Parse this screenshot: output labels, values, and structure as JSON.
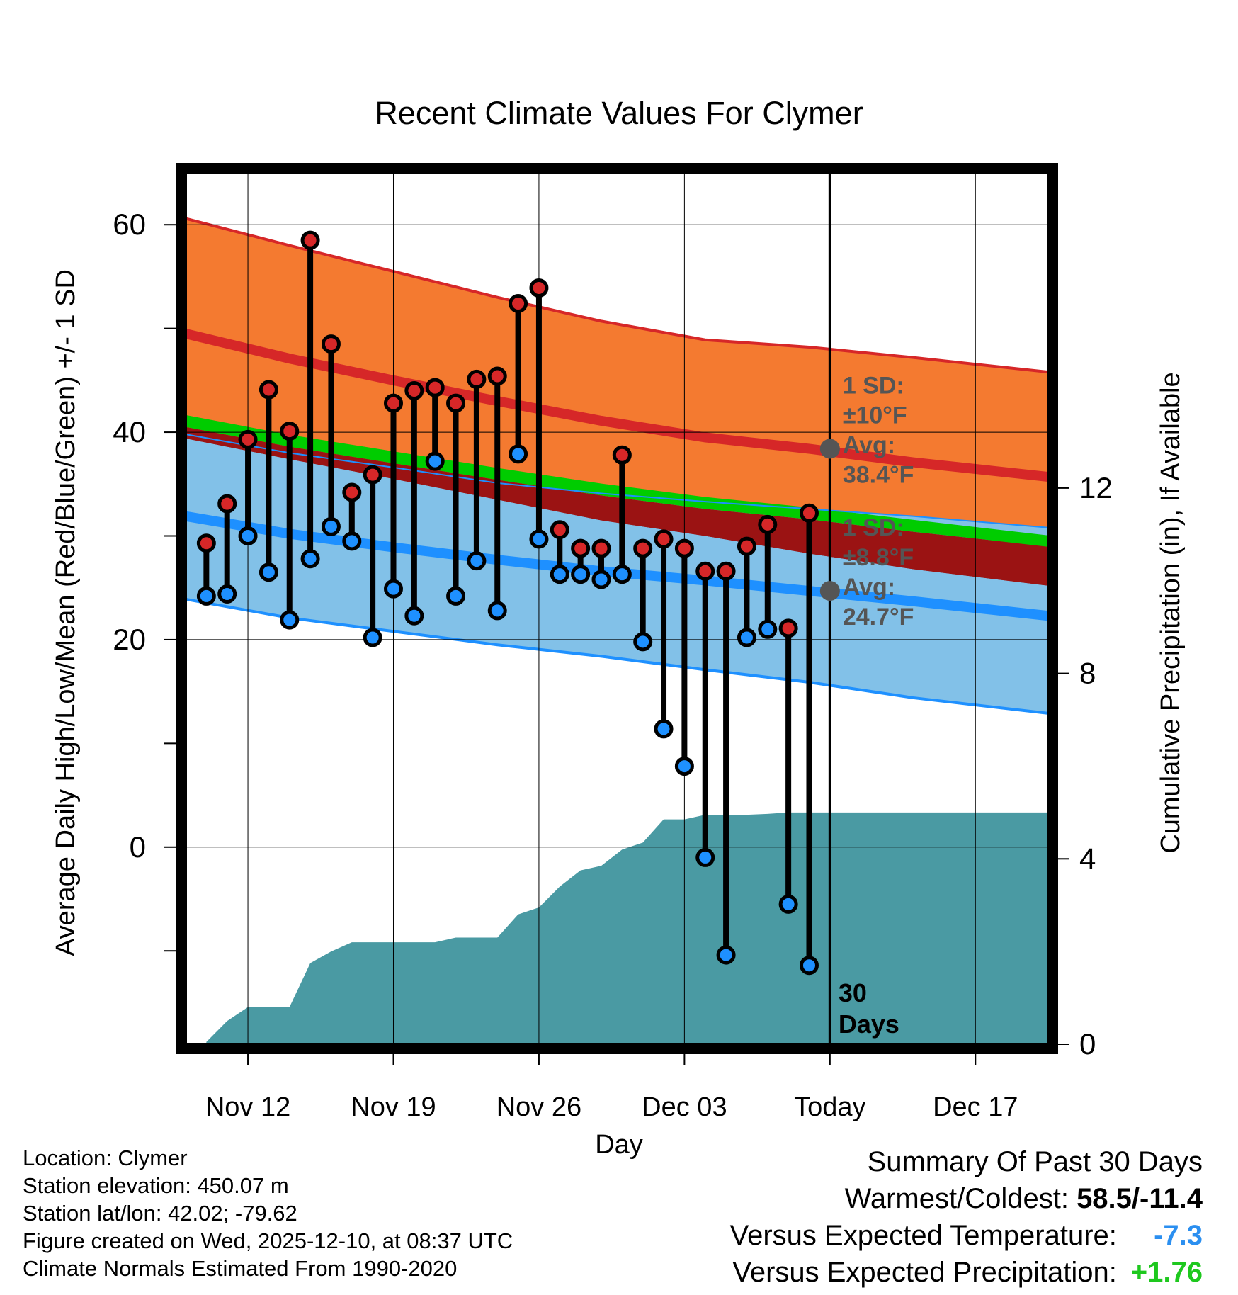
{
  "chart_data": {
    "type": "line",
    "title": "Recent Climate Values For Clymer",
    "xlabel": "Day",
    "ylabel": "Average Daily High/Low/Mean (Red/Blue/Green) +/- 1 SD",
    "y2label": "Cumulative Precipitation (in), If Available",
    "xlim": [
      0,
      41.5
    ],
    "ylim": [
      -19,
      65
    ],
    "y2lim": [
      0,
      18.8
    ],
    "xticks": [
      {
        "label": "Nov 12",
        "day": 3
      },
      {
        "label": "Nov 19",
        "day": 10
      },
      {
        "label": "Nov 26",
        "day": 17
      },
      {
        "label": "Dec 03",
        "day": 24
      },
      {
        "label": "Today",
        "day": 31
      },
      {
        "label": "Dec 17",
        "day": 38
      }
    ],
    "yticks": [
      0,
      20,
      40,
      60
    ],
    "y2ticks": [
      0,
      4,
      8,
      12
    ],
    "today_day": 31,
    "today_label": "30 Days",
    "normals": {
      "days": [
        0,
        5,
        10,
        15,
        20,
        25,
        30,
        35,
        41.5
      ],
      "high_mean": [
        49.5,
        47.1,
        45.0,
        43.0,
        41.1,
        39.5,
        38.4,
        37.1,
        35.7
      ],
      "high_sd_upper": [
        60.6,
        58.0,
        55.5,
        53.0,
        50.7,
        48.9,
        48.2,
        47.2,
        45.8
      ],
      "low_mean": [
        31.9,
        30.2,
        28.9,
        27.7,
        26.6,
        25.7,
        24.7,
        23.7,
        22.3
      ],
      "low_sd_lower": [
        23.9,
        22.1,
        20.8,
        19.5,
        18.4,
        17.1,
        15.9,
        14.4,
        12.9
      ],
      "mean": [
        40.5,
        38.6,
        37.0,
        35.4,
        33.9,
        32.6,
        31.6,
        30.4,
        29.0
      ],
      "mean_upper": [
        41.1,
        39.2,
        37.6,
        36.0,
        34.5,
        33.2,
        32.2,
        31.0,
        29.5
      ],
      "mean_lower": [
        39.4,
        37.4,
        35.5,
        33.5,
        31.5,
        30.0,
        28.3,
        26.8,
        25.2
      ],
      "sd_fill_top": [
        39.8,
        38.0,
        36.6,
        35.1,
        34.1,
        33.3,
        32.6,
        31.9,
        30.8
      ]
    },
    "series": [
      {
        "name": "Daily High",
        "color": "#d62728",
        "days": [
          1,
          2,
          3,
          4,
          5,
          6,
          7,
          8,
          9,
          10,
          11,
          12,
          13,
          14,
          15,
          16,
          17,
          18,
          19,
          20,
          21,
          22,
          23,
          24,
          25,
          26,
          27,
          28,
          29,
          30
        ],
        "values": [
          29.3,
          33.1,
          39.3,
          44.1,
          40.1,
          58.5,
          48.5,
          34.2,
          35.9,
          42.8,
          44.0,
          44.3,
          42.8,
          45.1,
          45.4,
          52.4,
          53.9,
          30.6,
          28.8,
          28.8,
          37.8,
          28.8,
          29.7,
          28.8,
          26.6,
          26.6,
          29.0,
          31.1,
          21.1,
          32.2
        ]
      },
      {
        "name": "Daily Low",
        "color": "#1e90ff",
        "days": [
          1,
          2,
          3,
          4,
          5,
          6,
          7,
          8,
          9,
          10,
          11,
          12,
          13,
          14,
          15,
          16,
          17,
          18,
          19,
          20,
          21,
          22,
          23,
          24,
          25,
          26,
          27,
          28,
          29,
          30
        ],
        "values": [
          24.2,
          24.4,
          30.0,
          26.5,
          21.9,
          27.8,
          30.9,
          29.5,
          20.2,
          24.9,
          22.3,
          37.2,
          24.2,
          27.6,
          22.8,
          37.9,
          29.7,
          26.3,
          26.3,
          25.8,
          26.3,
          19.8,
          11.4,
          7.8,
          -1.0,
          -10.4,
          20.2,
          21.0,
          -5.5,
          -11.4
        ]
      },
      {
        "name": "Cumulative Precipitation",
        "color": "#4a9aa3",
        "days": [
          1,
          2,
          3,
          4,
          5,
          6,
          7,
          8,
          9,
          10,
          11,
          12,
          13,
          14,
          15,
          16,
          17,
          18,
          19,
          20,
          21,
          22,
          23,
          24,
          25,
          26,
          27,
          28,
          29,
          30,
          31,
          41.5
        ],
        "values": [
          0.05,
          0.5,
          0.8,
          0.8,
          0.8,
          1.75,
          2.0,
          2.2,
          2.2,
          2.2,
          2.2,
          2.2,
          2.3,
          2.3,
          2.3,
          2.8,
          2.95,
          3.4,
          3.75,
          3.85,
          4.2,
          4.35,
          4.85,
          4.85,
          4.95,
          4.95,
          4.95,
          4.97,
          5.0,
          5.0,
          5.0,
          5.0
        ]
      }
    ],
    "annotations": [
      {
        "lines": [
          "1 SD:",
          "±10°F",
          "Avg:",
          "38.4°F"
        ],
        "anchor_value": 38.4,
        "day": 31
      },
      {
        "lines": [
          "1 SD:",
          "±8.8°F",
          "Avg:",
          "24.7°F"
        ],
        "anchor_value": 24.7,
        "day": 31
      }
    ],
    "colors": {
      "high_band": "#f47a30",
      "high_line": "#d62728",
      "low_band": "#82c1e8",
      "low_line": "#1e90ff",
      "mean_band": "#9b1313",
      "mean_line": "#00cc00",
      "precip": "#4a9aa3",
      "annotation": "#555555"
    }
  },
  "info": {
    "location": "Location: Clymer",
    "elevation": "Station elevation: 450.07 m",
    "latlon": "Station lat/lon: 42.02; -79.62",
    "created": "Figure created on Wed, 2025-12-10, at 08:37 UTC",
    "normals": "Climate Normals Estimated From 1990-2020"
  },
  "summary": {
    "title": "Summary Of Past 30 Days",
    "warmest_label": "Warmest/Coldest: ",
    "warmest_value": "58.5/-11.4",
    "temp_label": "Versus Expected Temperature:",
    "temp_value": "-7.3",
    "precip_label": "Versus Expected Precipitation:",
    "precip_value": "+1.76"
  }
}
